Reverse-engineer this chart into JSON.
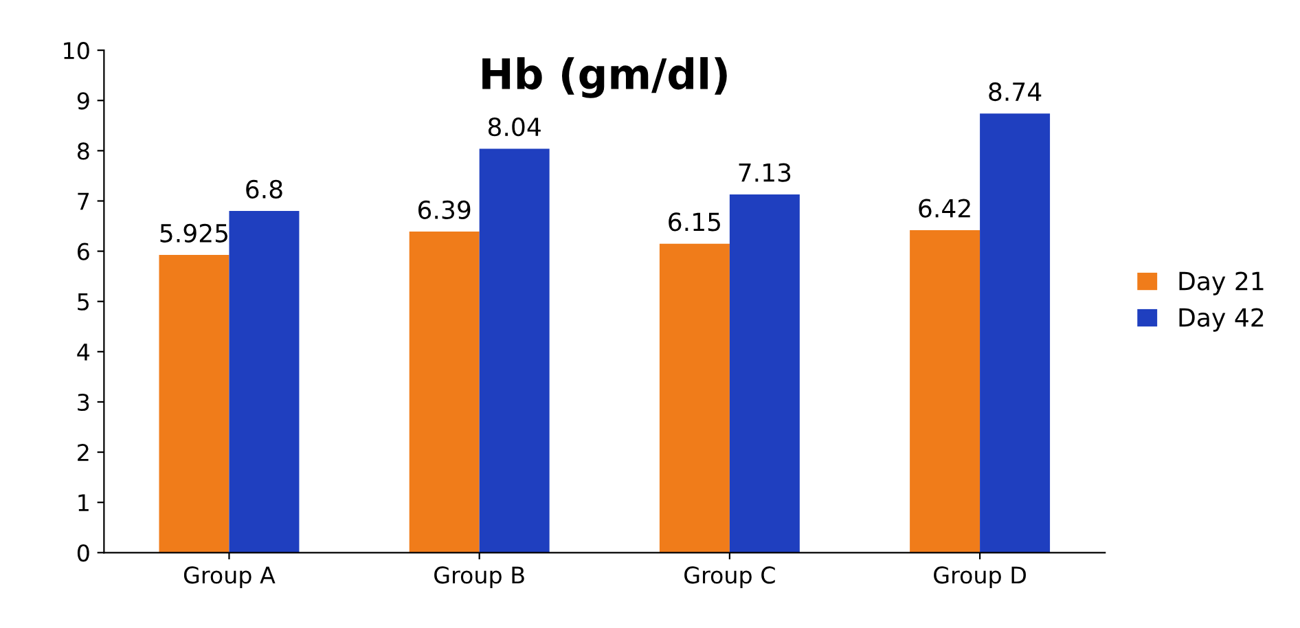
{
  "chart_data": {
    "type": "bar",
    "title": "Hb (gm/dl)",
    "categories": [
      "Group A",
      "Group B",
      "Group C",
      "Group D"
    ],
    "series": [
      {
        "name": "Day 21",
        "color": "#f07c1a",
        "values": [
          5.925,
          6.39,
          6.15,
          6.42
        ]
      },
      {
        "name": "Day 42",
        "color": "#1f3fbf",
        "values": [
          6.8,
          8.04,
          7.13,
          8.74
        ]
      }
    ],
    "ylim": [
      0,
      10
    ],
    "yticks": [
      0,
      1,
      2,
      3,
      4,
      5,
      6,
      7,
      8,
      9,
      10
    ],
    "grid": false,
    "legend": "right",
    "data_labels": true
  }
}
